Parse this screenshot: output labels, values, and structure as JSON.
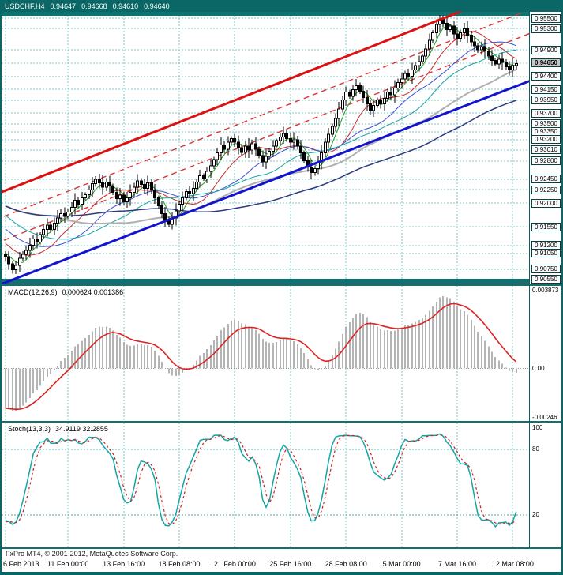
{
  "titlebar": {
    "symbol": "USDCHF,H4",
    "open": "0.94647",
    "high": "0.94668",
    "low": "0.94610",
    "close": "0.94640"
  },
  "colors": {
    "frame": "#0b6666",
    "grid": "#7bc7c7",
    "channel_support": "#1414cc",
    "channel_resistance": "#dd1111",
    "inner_dashed": "#dd3333",
    "sr_band": "#0d7272",
    "macd_histogram": "#b4b4b4",
    "macd_signal": "#dd2222",
    "stoch_main": "#12a5a5",
    "stoch_signal": "#cc2222",
    "bull_candle": "#ffffff",
    "bear_candle": "#000000"
  },
  "chart_data": [
    {
      "type": "candlestick",
      "title": "USDCHF,H4",
      "x_axis": {
        "labels": [
          "6 Feb 2013",
          "11 Feb 00:00",
          "13 Feb 16:00",
          "18 Feb 08:00",
          "21 Feb 00:00",
          "25 Feb 16:00",
          "28 Feb 08:00",
          "5 Mar 00:00",
          "7 Mar 16:00",
          "12 Mar 08:00"
        ],
        "label_bar_indexes": [
          0,
          18,
          34,
          50,
          66,
          82,
          98,
          114,
          130,
          146
        ]
      },
      "y_axis": {
        "top": 0.9562,
        "bottom": 0.9046,
        "levels": [
          {
            "price": 0.955,
            "label": "0.95500"
          },
          {
            "price": 0.953,
            "label": "0.95300"
          },
          {
            "price": 0.949,
            "label": "0.94900"
          },
          {
            "price": 0.9465,
            "label": "0.94650",
            "current": true
          },
          {
            "price": 0.944,
            "label": "0.94400"
          },
          {
            "price": 0.9415,
            "label": "0.94150"
          },
          {
            "price": 0.9395,
            "label": "0.93950"
          },
          {
            "price": 0.937,
            "label": "0.93700"
          },
          {
            "price": 0.935,
            "label": "0.93500"
          },
          {
            "price": 0.9335,
            "label": "0.93350"
          },
          {
            "price": 0.932,
            "label": "0.93200"
          },
          {
            "price": 0.9301,
            "label": "0.93010"
          },
          {
            "price": 0.928,
            "label": "0.92800"
          },
          {
            "price": 0.9245,
            "label": "0.92450"
          },
          {
            "price": 0.9225,
            "label": "0.92250"
          },
          {
            "price": 0.92,
            "label": "0.92000"
          },
          {
            "price": 0.9155,
            "label": "0.91550"
          },
          {
            "price": 0.912,
            "label": "0.91200"
          },
          {
            "price": 0.9105,
            "label": "0.91050"
          },
          {
            "price": 0.9075,
            "label": "0.90750"
          },
          {
            "price": 0.9055,
            "label": "0.90550"
          }
        ]
      },
      "prehistory_closes": [
        0.9295,
        0.9288,
        0.928,
        0.9285,
        0.9275,
        0.9268,
        0.9272,
        0.926,
        0.9252,
        0.9258,
        0.9245,
        0.9238,
        0.9242,
        0.923,
        0.9222,
        0.9215,
        0.922,
        0.9208,
        0.92,
        0.9205,
        0.9195,
        0.9185,
        0.919,
        0.9178,
        0.917,
        0.9162,
        0.9168,
        0.9155,
        0.9148,
        0.9152,
        0.914,
        0.9132,
        0.9138,
        0.9125,
        0.9118,
        0.9122,
        0.9112,
        0.9105,
        0.911,
        0.9102
      ],
      "series": {
        "first_open": 0.9108,
        "closes": [
          0.9098,
          0.9085,
          0.9074,
          0.9082,
          0.9095,
          0.9103,
          0.911,
          0.912,
          0.9132,
          0.9126,
          0.914,
          0.915,
          0.9158,
          0.915,
          0.9162,
          0.9172,
          0.918,
          0.9175,
          0.9183,
          0.9192,
          0.9205,
          0.9198,
          0.921,
          0.9216,
          0.9225,
          0.9237,
          0.9245,
          0.9238,
          0.923,
          0.924,
          0.9232,
          0.922,
          0.9208,
          0.9215,
          0.9202,
          0.921,
          0.922,
          0.923,
          0.9242,
          0.9235,
          0.9228,
          0.9238,
          0.9225,
          0.921,
          0.9195,
          0.918,
          0.9168,
          0.916,
          0.9172,
          0.9185,
          0.9198,
          0.921,
          0.9222,
          0.9218,
          0.9228,
          0.924,
          0.9252,
          0.9246,
          0.926,
          0.927,
          0.9282,
          0.9295,
          0.931,
          0.9302,
          0.9315,
          0.9322,
          0.9315,
          0.9305,
          0.9296,
          0.9308,
          0.93,
          0.9312,
          0.9302,
          0.929,
          0.9278,
          0.9288,
          0.9298,
          0.9308,
          0.9318,
          0.9325,
          0.9332,
          0.9322,
          0.9315,
          0.932,
          0.9308,
          0.9295,
          0.928,
          0.9268,
          0.9258,
          0.9265,
          0.9278,
          0.9295,
          0.9315,
          0.933,
          0.9345,
          0.936,
          0.9378,
          0.9395,
          0.941,
          0.9402,
          0.9415,
          0.9422,
          0.9412,
          0.94,
          0.9388,
          0.9375,
          0.9385,
          0.9395,
          0.9388,
          0.9398,
          0.941,
          0.9405,
          0.9418,
          0.9428,
          0.9435,
          0.9445,
          0.944,
          0.9452,
          0.946,
          0.9468,
          0.9478,
          0.9492,
          0.9508,
          0.9522,
          0.9538,
          0.9548,
          0.954,
          0.9528,
          0.9535,
          0.952,
          0.9512,
          0.9522,
          0.953,
          0.9518,
          0.9505,
          0.9498,
          0.949,
          0.9496,
          0.9488,
          0.9478,
          0.947,
          0.9463,
          0.9472,
          0.9466,
          0.9458,
          0.9452,
          0.946,
          0.9464
        ],
        "wick_overrides": {
          "2": {
            "low": 0.9066
          },
          "125": {
            "high": 0.9556
          }
        }
      },
      "moving_averages": [
        {
          "period": 5,
          "color": "#1e9e1e",
          "width": 1
        },
        {
          "period": 13,
          "color": "#cc2929",
          "width": 1
        },
        {
          "period": 24,
          "color": "#3c50d0",
          "width": 1
        },
        {
          "period": 34,
          "color": "#19a3a3",
          "width": 1
        },
        {
          "period": 55,
          "color": "#b0b0b0",
          "width": 2
        },
        {
          "period": 89,
          "color": "#2c3a80",
          "width": 1.5
        }
      ],
      "trendlines": [
        {
          "name": "channel-support",
          "style": "solid",
          "color": "#1414cc",
          "width": 3,
          "points": [
            {
              "bar": -3,
              "price": 0.9042
            },
            {
              "bar": 152,
              "price": 0.9434
            }
          ]
        },
        {
          "name": "channel-resistance",
          "style": "solid",
          "color": "#dd1111",
          "width": 3,
          "points": [
            {
              "bar": -3,
              "price": 0.9216
            },
            {
              "bar": 152,
              "price": 0.9617
            }
          ]
        },
        {
          "name": "inner-dashed-upper",
          "style": "dashed",
          "color": "#dd3333",
          "width": 1.4,
          "points": [
            {
              "bar": -3,
              "price": 0.9168
            },
            {
              "bar": 152,
              "price": 0.9569
            }
          ]
        },
        {
          "name": "inner-dashed-lower",
          "style": "dashed",
          "color": "#dd3333",
          "width": 1.4,
          "points": [
            {
              "bar": -3,
              "price": 0.9123
            },
            {
              "bar": 152,
              "price": 0.9524
            }
          ]
        }
      ],
      "h_bands": [
        {
          "price": 0.9559,
          "thickness_px": 6,
          "color": "#0d7272"
        },
        {
          "price": 0.9052,
          "thickness_px": 6,
          "color": "#0d7272"
        }
      ]
    },
    {
      "type": "line",
      "name": "MACD",
      "label": "MACD(12,26,9)",
      "values_label": "0.000624 0.001386",
      "params": [
        12,
        26,
        9
      ],
      "last_values": {
        "main": 0.000624,
        "signal": 0.001386
      },
      "axis": {
        "top": 0.0041,
        "bottom": -0.0026,
        "ticks": [
          {
            "v": 0.003873,
            "label": "0.003873"
          },
          {
            "v": 0,
            "label": "0.00"
          },
          {
            "v": -0.00246,
            "label": "-0.00246"
          }
        ]
      }
    },
    {
      "type": "line",
      "name": "Stochastic",
      "label": "Stoch(13,3,3)",
      "values_label": "34.9119 32.2855",
      "params": [
        13,
        3,
        3
      ],
      "last_values": {
        "k": 34.9119,
        "d": 32.2855
      },
      "levels": [
        80,
        20
      ],
      "axis_ticks": [
        {
          "v": 100,
          "label": "100"
        },
        {
          "v": 80,
          "label": "80"
        },
        {
          "v": 20,
          "label": "20"
        }
      ]
    }
  ],
  "footer": {
    "copyright": "FxPro MT4, © 2001-2012, MetaQuotes Software Corp."
  }
}
